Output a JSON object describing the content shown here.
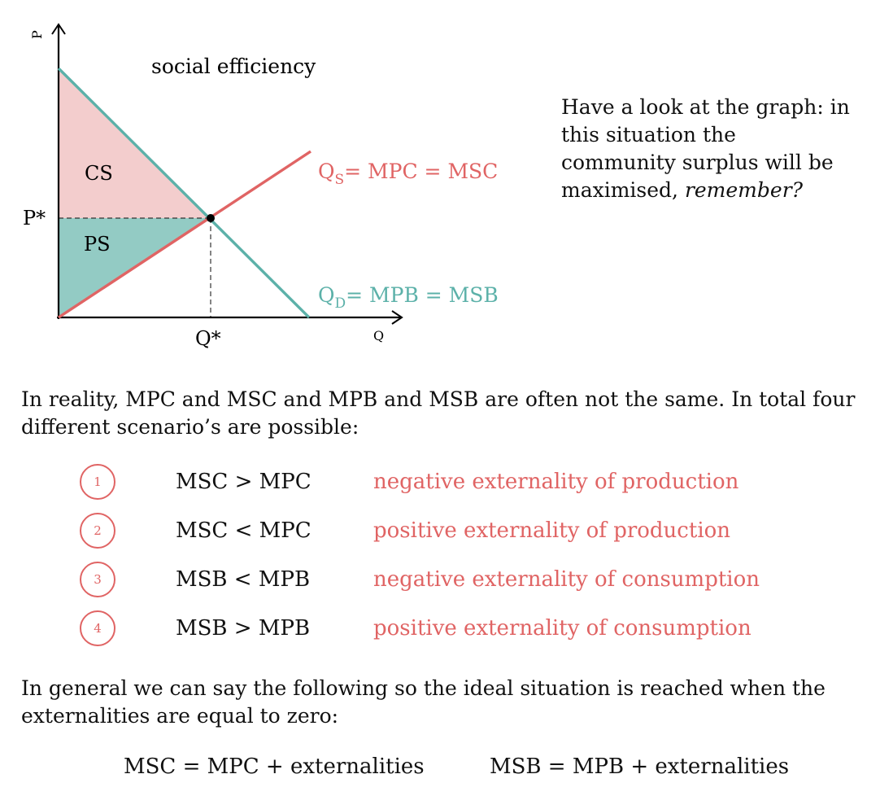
{
  "colors": {
    "supply": "#e06464",
    "demand": "#5cb1a9",
    "cs_fill": "#f3cdcd",
    "ps_fill": "#93cbc4",
    "accent_red": "#e06464"
  },
  "graph": {
    "title": "social efficiency",
    "y_axis_label": "P",
    "x_axis_label": "Q",
    "price_label": "P*",
    "quantity_label": "Q*",
    "cs_label": "CS",
    "ps_label": "PS",
    "supply_label": {
      "main": "Q",
      "sub": "S",
      "rest": "= MPC = MSC"
    },
    "demand_label": {
      "main": "Q",
      "sub": "D",
      "rest": "= MPB = MSB"
    }
  },
  "note": {
    "text": "Have a look at the graph: in this situation the community surplus will be maximised,",
    "emphasis": "remember?"
  },
  "intro": "In reality, MPC and MSC and MPB and MSB are often not the same. In total four different scenario’s are possible:",
  "scenarios": [
    {
      "number": "1",
      "relation": "MSC > MPC",
      "description": "negative externality of production"
    },
    {
      "number": "2",
      "relation": "MSC < MPC",
      "description": "positive externality of production"
    },
    {
      "number": "3",
      "relation": "MSB < MPB",
      "description": "negative externality of consumption"
    },
    {
      "number": "4",
      "relation": "MSB > MPB",
      "description": "positive externality of consumption"
    }
  ],
  "general": "In general we can say the following so the ideal situation is reached when the externalities are equal to zero:",
  "formulas": {
    "social_cost": "MSC = MPC + externalities",
    "social_benefit": "MSB = MPB + externalities"
  }
}
